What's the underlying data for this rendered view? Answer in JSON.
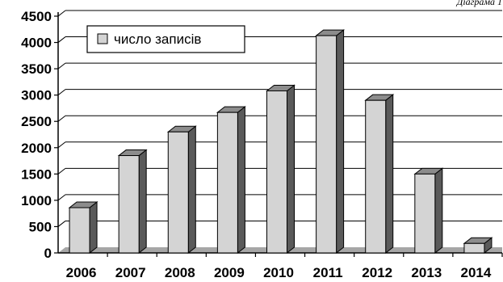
{
  "chart_data": {
    "type": "bar",
    "title": "Діаграма 1",
    "categories": [
      "2006",
      "2007",
      "2008",
      "2009",
      "2010",
      "2011",
      "2012",
      "2013",
      "2014"
    ],
    "series": [
      {
        "name": "число записів",
        "values": [
          860,
          1850,
          2300,
          2670,
          3080,
          4130,
          2900,
          1500,
          180
        ]
      }
    ],
    "xlabel": "",
    "ylabel": "",
    "ylim": [
      0,
      4500
    ],
    "yticks": [
      "0",
      "500",
      "1000",
      "1500",
      "2000",
      "2500",
      "3000",
      "3500",
      "4000",
      "4500"
    ],
    "grid": true,
    "legend_position": "top-left",
    "colors": {
      "bar_front": "#d4d4d4",
      "bar_side": "#5a5a5a",
      "bar_top": "#8c8c8c",
      "floor": "#a6a6a6",
      "grid": "#000000"
    }
  }
}
